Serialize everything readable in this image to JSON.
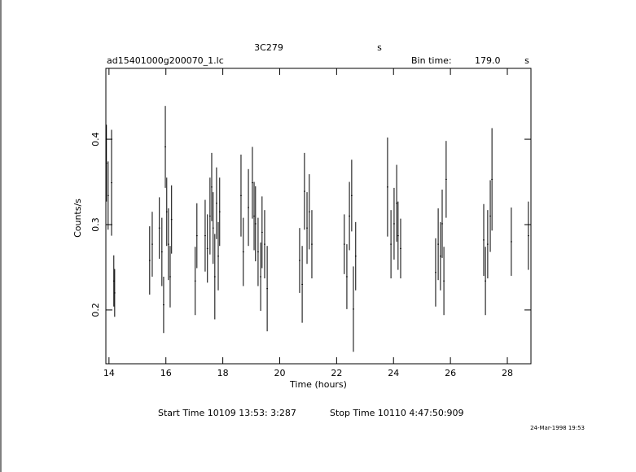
{
  "chart_data": {
    "type": "errorbar",
    "title": "3C279",
    "title_unit": "s",
    "filename": "ad15401000g200070_1.lc",
    "bin_time_label": "Bin time:",
    "bin_time": "179.0",
    "bin_time_unit": "s",
    "xlabel": "Time (hours)",
    "ylabel": "Counts/s",
    "start_time": "Start Time 10109 13:53: 3:287",
    "stop_time": "Stop Time 10110  4:47:50:909",
    "date_stamp": "24-Mar-1998 19:53",
    "xlim": [
      13.89,
      28.83
    ],
    "ylim": [
      0.137,
      0.483
    ],
    "xticks": [
      14,
      16,
      18,
      20,
      22,
      24,
      26,
      28
    ],
    "yticks": [
      0.2,
      0.3,
      0.4
    ],
    "series": [
      {
        "color": "#000000",
        "x": [
          13.91,
          13.97,
          14.09,
          14.17,
          14.2,
          15.43,
          15.52,
          15.77,
          15.86,
          15.92,
          15.98,
          16.03,
          16.09,
          16.15,
          16.2,
          17.03,
          17.09,
          17.38,
          17.46,
          17.55,
          17.61,
          17.66,
          17.72,
          17.78,
          17.84,
          17.89,
          18.64,
          18.72,
          18.9,
          19.04,
          19.1,
          19.15,
          19.24,
          19.33,
          19.38,
          19.47,
          19.56,
          20.7,
          20.79,
          20.87,
          20.96,
          21.04,
          21.13,
          22.27,
          22.36,
          22.45,
          22.53,
          22.59,
          22.67,
          23.79,
          23.91,
          24.02,
          24.11,
          24.16,
          24.25,
          25.48,
          25.57,
          25.65,
          25.71,
          25.77,
          25.85,
          27.17,
          27.23,
          27.31,
          27.4,
          27.46,
          28.14,
          28.74
        ],
        "values": [
          0.372,
          0.334,
          0.349,
          0.234,
          0.22,
          0.258,
          0.277,
          0.296,
          0.268,
          0.206,
          0.391,
          0.315,
          0.277,
          0.239,
          0.306,
          0.234,
          0.287,
          0.287,
          0.272,
          0.31,
          0.344,
          0.296,
          0.239,
          0.325,
          0.263,
          0.315,
          0.334,
          0.268,
          0.32,
          0.349,
          0.31,
          0.301,
          0.268,
          0.239,
          0.291,
          0.277,
          0.225,
          0.258,
          0.23,
          0.339,
          0.296,
          0.315,
          0.277,
          0.277,
          0.239,
          0.31,
          0.334,
          0.201,
          0.263,
          0.344,
          0.277,
          0.301,
          0.325,
          0.287,
          0.272,
          0.244,
          0.277,
          0.263,
          0.301,
          0.234,
          0.353,
          0.282,
          0.234,
          0.277,
          0.31,
          0.353,
          0.28,
          0.287
        ],
        "errors": [
          0.045,
          0.04,
          0.062,
          0.03,
          0.028,
          0.04,
          0.038,
          0.036,
          0.04,
          0.033,
          0.048,
          0.04,
          0.042,
          0.036,
          0.04,
          0.04,
          0.038,
          0.042,
          0.04,
          0.045,
          0.04,
          0.042,
          0.05,
          0.042,
          0.04,
          0.04,
          0.048,
          0.04,
          0.045,
          0.042,
          0.04,
          0.044,
          0.04,
          0.04,
          0.042,
          0.04,
          0.05,
          0.038,
          0.045,
          0.045,
          0.042,
          0.044,
          0.04,
          0.035,
          0.038,
          0.04,
          0.042,
          0.05,
          0.04,
          0.058,
          0.04,
          0.042,
          0.045,
          0.04,
          0.035,
          0.04,
          0.042,
          0.04,
          0.04,
          0.04,
          0.045,
          0.042,
          0.04,
          0.04,
          0.042,
          0.06,
          0.04,
          0.04
        ]
      }
    ]
  }
}
